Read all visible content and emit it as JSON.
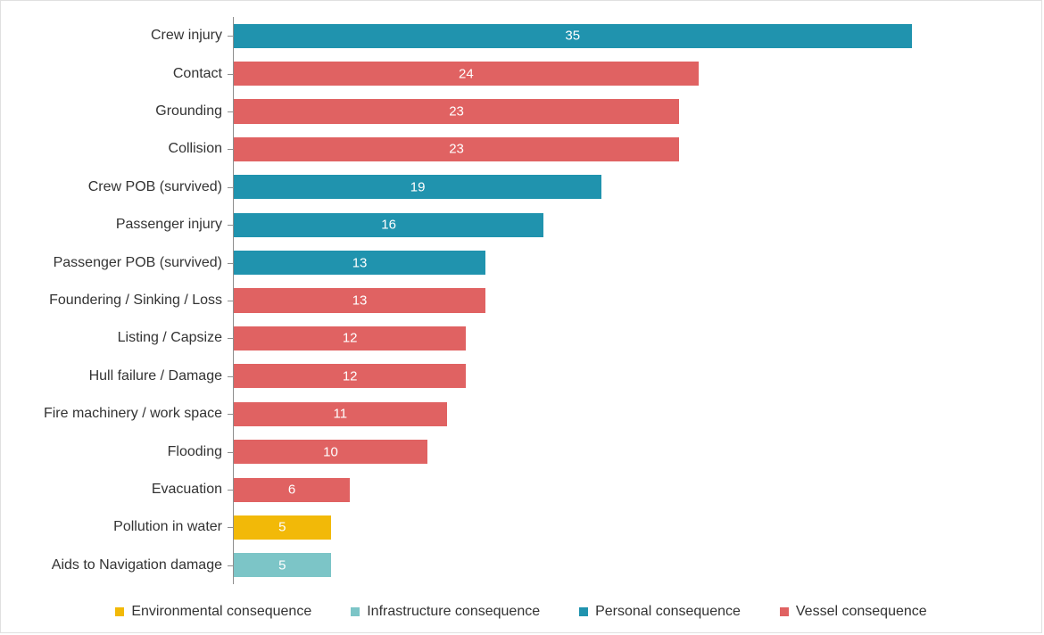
{
  "chart": {
    "type": "bar-horizontal",
    "background_color": "#ffffff",
    "border_color": "#e0e0e0",
    "axis_color": "#8e8e8e",
    "label_fontsize": 16,
    "value_label_fontsize": 15,
    "value_label_color": "#ffffff",
    "category_label_color": "#333333",
    "x_max": 40,
    "bar_height_pct": 64,
    "colors": {
      "environmental": "#f2b908",
      "infrastructure": "#7cc5c7",
      "personal": "#2093ae",
      "vessel": "#e06262"
    },
    "legend": {
      "fontsize": 16,
      "swatch_size": 10,
      "items": [
        {
          "key": "environmental",
          "label": "Environmental consequence"
        },
        {
          "key": "infrastructure",
          "label": "Infrastructure consequence"
        },
        {
          "key": "personal",
          "label": "Personal consequence"
        },
        {
          "key": "vessel",
          "label": "Vessel consequence"
        }
      ]
    },
    "rows": [
      {
        "label": "Crew injury",
        "value": 35,
        "series": "personal"
      },
      {
        "label": "Contact",
        "value": 24,
        "series": "vessel"
      },
      {
        "label": "Grounding",
        "value": 23,
        "series": "vessel"
      },
      {
        "label": "Collision",
        "value": 23,
        "series": "vessel"
      },
      {
        "label": "Crew POB (survived)",
        "value": 19,
        "series": "personal"
      },
      {
        "label": "Passenger injury",
        "value": 16,
        "series": "personal"
      },
      {
        "label": "Passenger POB (survived)",
        "value": 13,
        "series": "personal"
      },
      {
        "label": "Foundering / Sinking / Loss",
        "value": 13,
        "series": "vessel"
      },
      {
        "label": "Listing / Capsize",
        "value": 12,
        "series": "vessel"
      },
      {
        "label": "Hull failure / Damage",
        "value": 12,
        "series": "vessel"
      },
      {
        "label": "Fire machinery / work space",
        "value": 11,
        "series": "vessel"
      },
      {
        "label": "Flooding",
        "value": 10,
        "series": "vessel"
      },
      {
        "label": "Evacuation",
        "value": 6,
        "series": "vessel"
      },
      {
        "label": "Pollution in water",
        "value": 5,
        "series": "environmental"
      },
      {
        "label": "Aids to Navigation damage",
        "value": 5,
        "series": "infrastructure"
      }
    ]
  }
}
